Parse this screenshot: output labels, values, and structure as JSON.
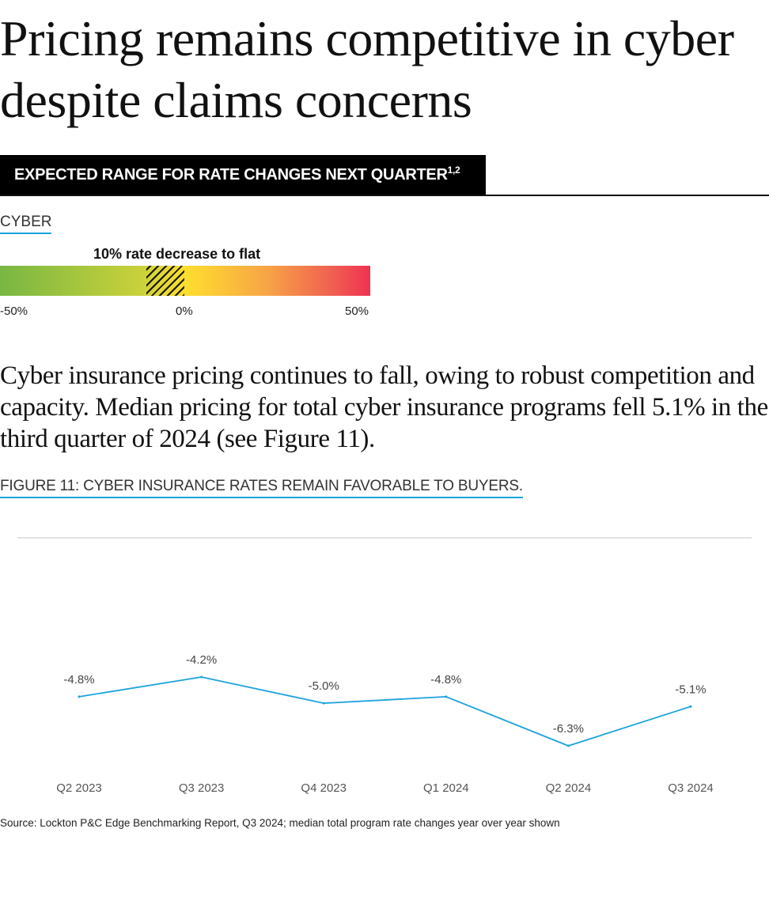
{
  "title": "Pricing remains competitive in cyber despite claims concerns",
  "banner": {
    "text": "EXPECTED RANGE FOR RATE CHANGES NEXT QUARTER",
    "sup": "1,2"
  },
  "cyber_section": {
    "label": "CYBER",
    "range_label": "10% rate decrease to flat",
    "range_value": {
      "from": -10,
      "to": 0
    },
    "scale": {
      "min": -50,
      "max": 50
    },
    "tick_labels": [
      "-50%",
      "0%",
      "50%"
    ]
  },
  "body_text": "Cyber insurance pricing continues to fall, owing to robust competition and capacity. Median pricing for total cyber insurance programs fell 5.1% in the third quarter of 2024 (see Figure 11).",
  "figure_label": "FIGURE 11: CYBER INSURANCE RATES REMAIN FAVORABLE TO BUYERS.",
  "chart_data": {
    "type": "line",
    "title": "",
    "xlabel": "",
    "ylabel": "",
    "categories": [
      "Q2 2023",
      "Q3 2023",
      "Q4 2023",
      "Q1 2024",
      "Q2 2024",
      "Q3 2024"
    ],
    "series": [
      {
        "name": "Median total program rate change",
        "values": [
          -4.8,
          -4.2,
          -5.0,
          -4.8,
          -6.3,
          -5.1
        ],
        "labels": [
          "-4.8%",
          "-4.2%",
          "-5.0%",
          "-4.8%",
          "-6.3%",
          "-5.1%"
        ]
      }
    ],
    "ylim": [
      -6.8,
      0
    ],
    "grid": false,
    "line_color": "#1ba3dd"
  },
  "source": "Source: Lockton P&C Edge Benchmarking Report, Q3 2024; median total program rate changes year over year shown"
}
